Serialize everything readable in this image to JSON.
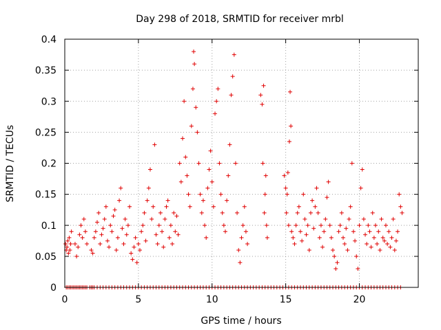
{
  "chart_data": {
    "type": "scatter",
    "title": "Day 298 of 2018, SRMTID for receiver mrbl",
    "xlabel": "GPS time / hours",
    "ylabel": "SRMTID / TECUs",
    "xlim": [
      0,
      24
    ],
    "ylim": [
      0,
      0.4
    ],
    "x_ticks": [
      0,
      5,
      10,
      15,
      20
    ],
    "y_ticks": [
      0,
      0.05,
      0.1,
      0.15,
      0.2,
      0.25,
      0.3,
      0.35,
      0.4
    ],
    "x_tick_labels": [
      "0",
      "5",
      "10",
      "15",
      "20"
    ],
    "y_tick_labels": [
      "0",
      "0.05",
      "0.1",
      "0.15",
      "0.2",
      "0.25",
      "0.3",
      "0.35",
      "0.4"
    ],
    "grid": true,
    "marker": "+",
    "series": [
      {
        "name": "SRMTID",
        "color": "#e00000",
        "points": [
          [
            0.05,
            0.07
          ],
          [
            0.1,
            0.06
          ],
          [
            0.15,
            0.065
          ],
          [
            0.2,
            0.075
          ],
          [
            0.25,
            0.055
          ],
          [
            0.3,
            0.08
          ],
          [
            0.35,
            0.06
          ],
          [
            0.4,
            0.07
          ],
          [
            0.45,
            0.09
          ],
          [
            0.7,
            0.07
          ],
          [
            0.8,
            0.05
          ],
          [
            0.9,
            0.065
          ],
          [
            1.0,
            0.085
          ],
          [
            1.1,
            0.1
          ],
          [
            1.2,
            0.08
          ],
          [
            1.3,
            0.11
          ],
          [
            1.4,
            0.09
          ],
          [
            1.5,
            0.07
          ],
          [
            1.8,
            0.06
          ],
          [
            1.9,
            0.055
          ],
          [
            2.0,
            0.08
          ],
          [
            2.1,
            0.09
          ],
          [
            2.2,
            0.105
          ],
          [
            2.3,
            0.12
          ],
          [
            2.4,
            0.07
          ],
          [
            2.5,
            0.085
          ],
          [
            2.6,
            0.095
          ],
          [
            2.7,
            0.11
          ],
          [
            2.8,
            0.13
          ],
          [
            2.9,
            0.075
          ],
          [
            3.0,
            0.065
          ],
          [
            3.1,
            0.1
          ],
          [
            3.2,
            0.09
          ],
          [
            3.3,
            0.115
          ],
          [
            3.4,
            0.125
          ],
          [
            3.5,
            0.06
          ],
          [
            3.6,
            0.08
          ],
          [
            3.7,
            0.14
          ],
          [
            3.8,
            0.16
          ],
          [
            3.9,
            0.095
          ],
          [
            4.0,
            0.07
          ],
          [
            4.1,
            0.11
          ],
          [
            4.2,
            0.085
          ],
          [
            4.3,
            0.1
          ],
          [
            4.4,
            0.13
          ],
          [
            4.5,
            0.055
          ],
          [
            4.6,
            0.045
          ],
          [
            4.7,
            0.065
          ],
          [
            4.8,
            0.08
          ],
          [
            4.9,
            0.04
          ],
          [
            5.0,
            0.07
          ],
          [
            5.1,
            0.06
          ],
          [
            5.2,
            0.09
          ],
          [
            5.3,
            0.1
          ],
          [
            5.4,
            0.12
          ],
          [
            5.5,
            0.075
          ],
          [
            5.6,
            0.14
          ],
          [
            5.7,
            0.16
          ],
          [
            5.8,
            0.19
          ],
          [
            5.9,
            0.11
          ],
          [
            6.0,
            0.13
          ],
          [
            6.1,
            0.23
          ],
          [
            6.2,
            0.085
          ],
          [
            6.3,
            0.07
          ],
          [
            6.4,
            0.1
          ],
          [
            6.5,
            0.12
          ],
          [
            6.6,
            0.09
          ],
          [
            6.7,
            0.065
          ],
          [
            6.8,
            0.11
          ],
          [
            6.9,
            0.13
          ],
          [
            7.0,
            0.14
          ],
          [
            7.1,
            0.08
          ],
          [
            7.2,
            0.1
          ],
          [
            7.3,
            0.07
          ],
          [
            7.4,
            0.12
          ],
          [
            7.5,
            0.09
          ],
          [
            7.6,
            0.115
          ],
          [
            7.7,
            0.085
          ],
          [
            7.8,
            0.2
          ],
          [
            7.9,
            0.17
          ],
          [
            8.0,
            0.24
          ],
          [
            8.1,
            0.3
          ],
          [
            8.2,
            0.21
          ],
          [
            8.3,
            0.18
          ],
          [
            8.4,
            0.15
          ],
          [
            8.5,
            0.13
          ],
          [
            8.6,
            0.26
          ],
          [
            8.7,
            0.32
          ],
          [
            8.75,
            0.38
          ],
          [
            8.8,
            0.36
          ],
          [
            8.9,
            0.29
          ],
          [
            9.0,
            0.25
          ],
          [
            9.1,
            0.2
          ],
          [
            9.2,
            0.15
          ],
          [
            9.3,
            0.12
          ],
          [
            9.4,
            0.14
          ],
          [
            9.5,
            0.1
          ],
          [
            9.6,
            0.08
          ],
          [
            9.7,
            0.16
          ],
          [
            9.8,
            0.19
          ],
          [
            9.9,
            0.22
          ],
          [
            10.0,
            0.17
          ],
          [
            10.1,
            0.13
          ],
          [
            10.2,
            0.28
          ],
          [
            10.3,
            0.3
          ],
          [
            10.4,
            0.32
          ],
          [
            10.5,
            0.2
          ],
          [
            10.6,
            0.15
          ],
          [
            10.7,
            0.12
          ],
          [
            10.8,
            0.1
          ],
          [
            10.9,
            0.09
          ],
          [
            11.0,
            0.14
          ],
          [
            11.1,
            0.18
          ],
          [
            11.2,
            0.23
          ],
          [
            11.3,
            0.31
          ],
          [
            11.4,
            0.34
          ],
          [
            11.5,
            0.375
          ],
          [
            11.6,
            0.2
          ],
          [
            11.7,
            0.12
          ],
          [
            11.8,
            0.06
          ],
          [
            11.9,
            0.04
          ],
          [
            12.0,
            0.08
          ],
          [
            12.1,
            0.1
          ],
          [
            12.2,
            0.13
          ],
          [
            12.3,
            0.09
          ],
          [
            12.4,
            0.07
          ],
          [
            13.3,
            0.31
          ],
          [
            13.4,
            0.295
          ],
          [
            13.45,
            0.2
          ],
          [
            13.5,
            0.325
          ],
          [
            13.55,
            0.12
          ],
          [
            13.6,
            0.15
          ],
          [
            13.65,
            0.18
          ],
          [
            13.7,
            0.1
          ],
          [
            13.75,
            0.08
          ],
          [
            14.9,
            0.18
          ],
          [
            15.0,
            0.16
          ],
          [
            15.05,
            0.12
          ],
          [
            15.1,
            0.15
          ],
          [
            15.15,
            0.185
          ],
          [
            15.2,
            0.1
          ],
          [
            15.25,
            0.235
          ],
          [
            15.3,
            0.315
          ],
          [
            15.35,
            0.26
          ],
          [
            15.4,
            0.09
          ],
          [
            15.5,
            0.08
          ],
          [
            15.6,
            0.07
          ],
          [
            15.7,
            0.1
          ],
          [
            15.8,
            0.12
          ],
          [
            15.9,
            0.13
          ],
          [
            16.0,
            0.09
          ],
          [
            16.1,
            0.075
          ],
          [
            16.2,
            0.15
          ],
          [
            16.3,
            0.11
          ],
          [
            16.4,
            0.085
          ],
          [
            16.5,
            0.1
          ],
          [
            16.6,
            0.06
          ],
          [
            16.7,
            0.12
          ],
          [
            16.8,
            0.14
          ],
          [
            16.9,
            0.095
          ],
          [
            17.0,
            0.13
          ],
          [
            17.1,
            0.16
          ],
          [
            17.2,
            0.12
          ],
          [
            17.3,
            0.08
          ],
          [
            17.4,
            0.1
          ],
          [
            17.5,
            0.065
          ],
          [
            17.6,
            0.09
          ],
          [
            17.7,
            0.11
          ],
          [
            17.8,
            0.145
          ],
          [
            17.9,
            0.17
          ],
          [
            18.0,
            0.1
          ],
          [
            18.1,
            0.08
          ],
          [
            18.2,
            0.06
          ],
          [
            18.3,
            0.05
          ],
          [
            18.4,
            0.03
          ],
          [
            18.5,
            0.04
          ],
          [
            18.6,
            0.09
          ],
          [
            18.7,
            0.1
          ],
          [
            18.8,
            0.12
          ],
          [
            18.9,
            0.08
          ],
          [
            19.0,
            0.07
          ],
          [
            19.1,
            0.095
          ],
          [
            19.2,
            0.06
          ],
          [
            19.3,
            0.11
          ],
          [
            19.4,
            0.13
          ],
          [
            19.5,
            0.2
          ],
          [
            19.6,
            0.09
          ],
          [
            19.7,
            0.075
          ],
          [
            19.8,
            0.05
          ],
          [
            19.9,
            0.03
          ],
          [
            20.0,
            0.1
          ],
          [
            20.1,
            0.16
          ],
          [
            20.2,
            0.19
          ],
          [
            20.3,
            0.11
          ],
          [
            20.4,
            0.085
          ],
          [
            20.5,
            0.07
          ],
          [
            20.6,
            0.1
          ],
          [
            20.7,
            0.09
          ],
          [
            20.8,
            0.065
          ],
          [
            20.9,
            0.12
          ],
          [
            21.0,
            0.08
          ],
          [
            21.1,
            0.1
          ],
          [
            21.2,
            0.07
          ],
          [
            21.3,
            0.09
          ],
          [
            21.4,
            0.06
          ],
          [
            21.5,
            0.11
          ],
          [
            21.6,
            0.08
          ],
          [
            21.7,
            0.075
          ],
          [
            21.8,
            0.1
          ],
          [
            21.9,
            0.07
          ],
          [
            22.0,
            0.09
          ],
          [
            22.1,
            0.065
          ],
          [
            22.2,
            0.08
          ],
          [
            22.3,
            0.11
          ],
          [
            22.4,
            0.06
          ],
          [
            22.5,
            0.075
          ],
          [
            22.6,
            0.09
          ],
          [
            22.7,
            0.15
          ],
          [
            22.8,
            0.13
          ],
          [
            22.9,
            0.12
          ]
        ],
        "zero_points_x": [
          0.1,
          0.2,
          0.3,
          0.4,
          0.5,
          0.6,
          0.7,
          0.8,
          0.9,
          1.0,
          1.1,
          1.2,
          1.3,
          1.4,
          1.5,
          1.7,
          1.8,
          1.9,
          2.0,
          2.2,
          2.4,
          2.6,
          2.8,
          3.0,
          3.2,
          3.4,
          3.6,
          3.8,
          4.0,
          4.2,
          4.4,
          4.6,
          4.8,
          5.0,
          5.2,
          5.4,
          5.6,
          5.8,
          6.0,
          6.2,
          6.4,
          6.6,
          6.8,
          7.0,
          7.2,
          7.4,
          7.6,
          7.8,
          8.0,
          8.2,
          8.4,
          8.6,
          8.8,
          9.0,
          9.2,
          9.4,
          9.6,
          9.8,
          10.0,
          10.2,
          10.4,
          10.6,
          10.8,
          11.0,
          11.2,
          11.4,
          11.6,
          11.8,
          12.0,
          12.2,
          12.4,
          12.6,
          12.8,
          13.0,
          13.2,
          13.4,
          13.6,
          13.8,
          14.0,
          14.2,
          14.4,
          14.6,
          14.8,
          15.0,
          15.2,
          15.4,
          15.6,
          15.8,
          16.0,
          16.2,
          16.4,
          16.6,
          16.8,
          17.0,
          17.2,
          17.4,
          17.6,
          17.8,
          18.0,
          18.2,
          18.4,
          18.6,
          18.8,
          19.0,
          19.2,
          19.4,
          19.6,
          19.8,
          20.0,
          20.2,
          20.4,
          20.6,
          20.8,
          21.0,
          21.2,
          21.4,
          21.6,
          21.8,
          22.0,
          22.2,
          22.4,
          22.6,
          22.8
        ]
      }
    ]
  }
}
